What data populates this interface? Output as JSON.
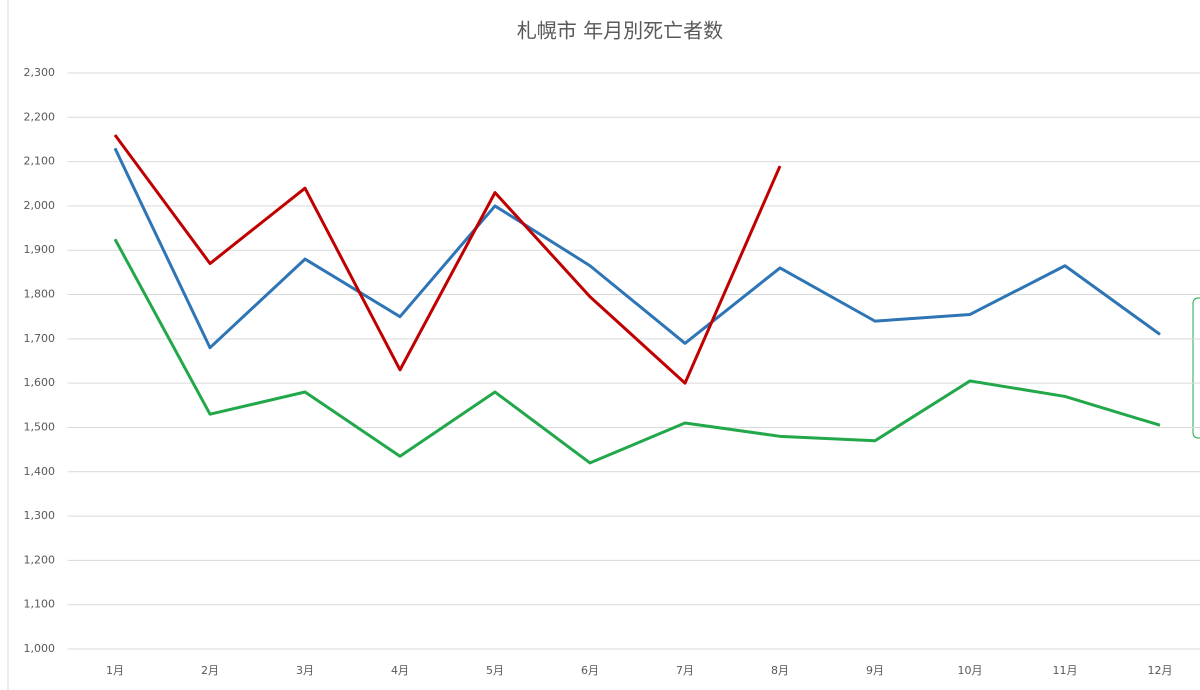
{
  "chart_data": {
    "type": "line",
    "title": "札幌市 年月別死亡者数",
    "categories": [
      "1月",
      "2月",
      "3月",
      "4月",
      "5月",
      "6月",
      "7月",
      "8月",
      "9月",
      "10月",
      "11月",
      "12月"
    ],
    "series": [
      {
        "color": "#2e75b6",
        "values": [
          2130,
          1680,
          1880,
          1750,
          2000,
          1865,
          1690,
          1860,
          1740,
          1755,
          1865,
          1710
        ]
      },
      {
        "color": "#c00000",
        "values": [
          2160,
          1870,
          2040,
          1630,
          2030,
          1795,
          1600,
          2090,
          null,
          null,
          null,
          null
        ]
      },
      {
        "color": "#22a84a",
        "values": [
          1925,
          1530,
          1580,
          1435,
          1580,
          1420,
          1510,
          1480,
          1470,
          1605,
          1570,
          1505
        ]
      }
    ],
    "ylim": [
      1000,
      2300
    ],
    "yticks": [
      {
        "value": 1000,
        "label": "1,000"
      },
      {
        "value": 1100,
        "label": "1,100"
      },
      {
        "value": 1200,
        "label": "1,200"
      },
      {
        "value": 1300,
        "label": "1,300"
      },
      {
        "value": 1400,
        "label": "1,400"
      },
      {
        "value": 1500,
        "label": "1,500"
      },
      {
        "value": 1600,
        "label": "1,600"
      },
      {
        "value": 1700,
        "label": "1,700"
      },
      {
        "value": 1800,
        "label": "1,800"
      },
      {
        "value": 1900,
        "label": "1,900"
      },
      {
        "value": 2000,
        "label": "2,000"
      },
      {
        "value": 2100,
        "label": "2,100"
      },
      {
        "value": 2200,
        "label": "2,200"
      },
      {
        "value": 2300,
        "label": "2,300"
      }
    ],
    "grid": true
  }
}
